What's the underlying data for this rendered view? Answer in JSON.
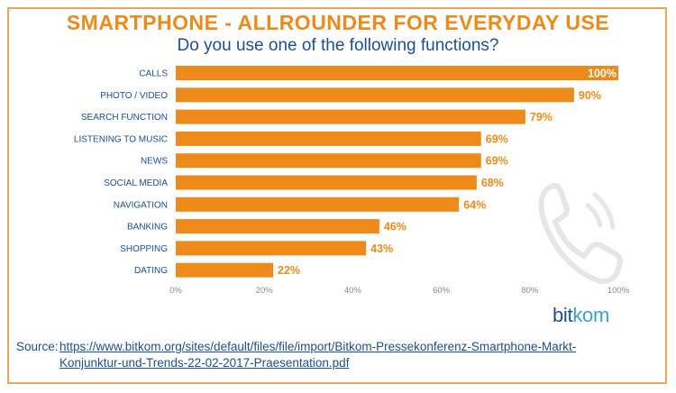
{
  "title": "SMARTPHONE - ALLROUNDER FOR EVERYDAY USE",
  "subtitle": "Do you use one of the following functions?",
  "brand": {
    "prefix": "bit",
    "suffix": "kom"
  },
  "icon": "phone-icon",
  "source": {
    "label": "Source:",
    "link_line1": "https://www.bitkom.org/sites/default/files/file/import/Bitkom-Pressekonferenz-Smartphone-Markt-",
    "link_line2": "Konjunktur-und-Trends-22-02-2017-Praesentation.pdf"
  },
  "colors": {
    "bar": "#ee8a19",
    "title": "#ee8a19",
    "text": "#1d4f91",
    "frame": "#f0a45a"
  },
  "chart_data": {
    "type": "bar",
    "orientation": "horizontal",
    "categories": [
      "CALLS",
      "PHOTO / VIDEO",
      "SEARCH FUNCTION",
      "LISTENING TO MUSIC",
      "NEWS",
      "SOCIAL MEDIA",
      "NAVIGATION",
      "BANKING",
      "SHOPPING",
      "DATING"
    ],
    "values": [
      100,
      90,
      79,
      69,
      69,
      68,
      64,
      46,
      43,
      22
    ],
    "value_labels": [
      "100%",
      "90%",
      "79%",
      "69%",
      "69%",
      "68%",
      "64%",
      "46%",
      "43%",
      "22%"
    ],
    "xlim": [
      0,
      100
    ],
    "xticks": [
      0,
      20,
      40,
      60,
      80,
      100
    ],
    "xtick_labels": [
      "0%",
      "20%",
      "40%",
      "60%",
      "80%",
      "100%"
    ],
    "grid": false
  }
}
